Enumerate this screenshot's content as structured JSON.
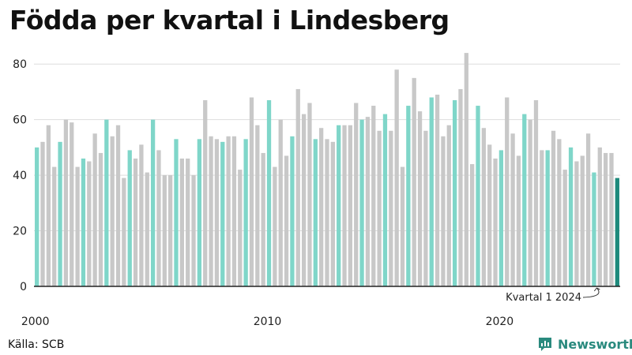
{
  "title": "Födda per kvartal i Lindesberg",
  "source": "Källa: SCB",
  "brand": "Newsworthy",
  "annotation": "Kvartal 1 2024",
  "colors": {
    "q1": "#7fd6c9",
    "other": "#c8c8c8",
    "latest": "#1e8a7c",
    "grid": "#dddddd",
    "axis": "#222222",
    "brand": "#2a8a7e"
  },
  "chart_data": {
    "type": "bar",
    "xlabel": "",
    "ylabel": "",
    "ylim": [
      0,
      90
    ],
    "yticks": [
      0,
      20,
      40,
      60,
      80
    ],
    "xtick_labels": [
      "2000",
      "2010",
      "2020"
    ],
    "start_year": 2000,
    "values": [
      50,
      52,
      58,
      43,
      52,
      60,
      59,
      43,
      46,
      45,
      55,
      48,
      60,
      54,
      58,
      39,
      49,
      46,
      51,
      41,
      60,
      49,
      40,
      40,
      53,
      46,
      46,
      40,
      53,
      67,
      54,
      53,
      52,
      54,
      54,
      42,
      53,
      68,
      58,
      48,
      67,
      43,
      60,
      47,
      54,
      71,
      62,
      66,
      53,
      57,
      53,
      52,
      58,
      58,
      58,
      66,
      60,
      61,
      65,
      56,
      62,
      56,
      78,
      43,
      65,
      75,
      63,
      56,
      68,
      69,
      54,
      58,
      67,
      71,
      84,
      44,
      65,
      57,
      51,
      46,
      49,
      68,
      55,
      47,
      62,
      60,
      67,
      49,
      49,
      56,
      53,
      42,
      50,
      45,
      47,
      55,
      41,
      50,
      48,
      48,
      39
    ]
  }
}
